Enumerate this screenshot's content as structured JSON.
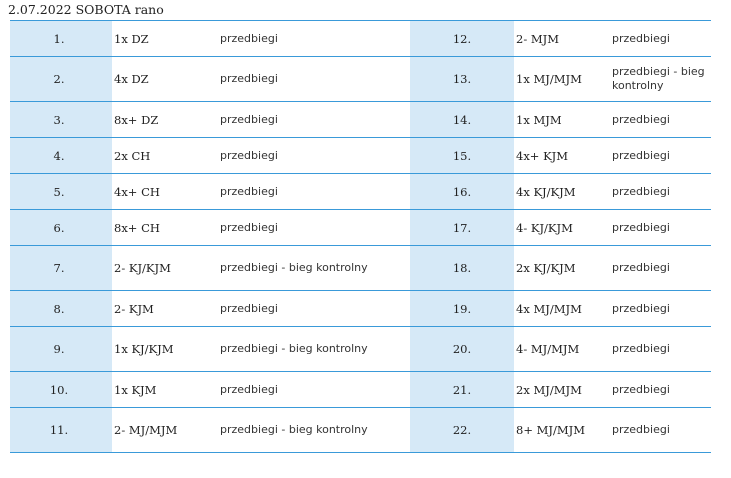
{
  "heading": "2.07.2022 SOBOTA rano",
  "rows": [
    {
      "left": {
        "num": "1.",
        "cat": "1x DZ",
        "stage": "przedbiegi"
      },
      "right": {
        "num": "12.",
        "cat": "2- MJM",
        "stage": "przedbiegi"
      },
      "tall": false
    },
    {
      "left": {
        "num": "2.",
        "cat": "4x DZ",
        "stage": "przedbiegi"
      },
      "right": {
        "num": "13.",
        "cat": "1x MJ/MJM",
        "stage": "przedbiegi - bieg kontrolny"
      },
      "tall": true
    },
    {
      "left": {
        "num": "3.",
        "cat": "8x+ DZ",
        "stage": "przedbiegi"
      },
      "right": {
        "num": "14.",
        "cat": "1x MJM",
        "stage": "przedbiegi"
      },
      "tall": false
    },
    {
      "left": {
        "num": "4.",
        "cat": "2x CH",
        "stage": "przedbiegi"
      },
      "right": {
        "num": "15.",
        "cat": "4x+ KJM",
        "stage": "przedbiegi"
      },
      "tall": false
    },
    {
      "left": {
        "num": "5.",
        "cat": "4x+ CH",
        "stage": "przedbiegi"
      },
      "right": {
        "num": "16.",
        "cat": "4x KJ/KJM",
        "stage": "przedbiegi"
      },
      "tall": false
    },
    {
      "left": {
        "num": "6.",
        "cat": "8x+ CH",
        "stage": "przedbiegi"
      },
      "right": {
        "num": "17.",
        "cat": "4- KJ/KJM",
        "stage": "przedbiegi"
      },
      "tall": false
    },
    {
      "left": {
        "num": "7.",
        "cat": "2- KJ/KJM",
        "stage": "przedbiegi - bieg kontrolny"
      },
      "right": {
        "num": "18.",
        "cat": "2x KJ/KJM",
        "stage": "przedbiegi"
      },
      "tall": true
    },
    {
      "left": {
        "num": "8.",
        "cat": "2- KJM",
        "stage": "przedbiegi"
      },
      "right": {
        "num": "19.",
        "cat": "4x MJ/MJM",
        "stage": "przedbiegi"
      },
      "tall": false
    },
    {
      "left": {
        "num": "9.",
        "cat": "1x KJ/KJM",
        "stage": "przedbiegi - bieg kontrolny"
      },
      "right": {
        "num": "20.",
        "cat": "4- MJ/MJM",
        "stage": "przedbiegi"
      },
      "tall": true
    },
    {
      "left": {
        "num": "10.",
        "cat": "1x KJM",
        "stage": "przedbiegi"
      },
      "right": {
        "num": "21.",
        "cat": "2x MJ/MJM",
        "stage": "przedbiegi"
      },
      "tall": false
    },
    {
      "left": {
        "num": "11.",
        "cat": "2- MJ/MJM",
        "stage": "przedbiegi - bieg kontrolny"
      },
      "right": {
        "num": "22.",
        "cat": "8+ MJ/MJM",
        "stage": "przedbiegi"
      },
      "tall": true
    }
  ]
}
